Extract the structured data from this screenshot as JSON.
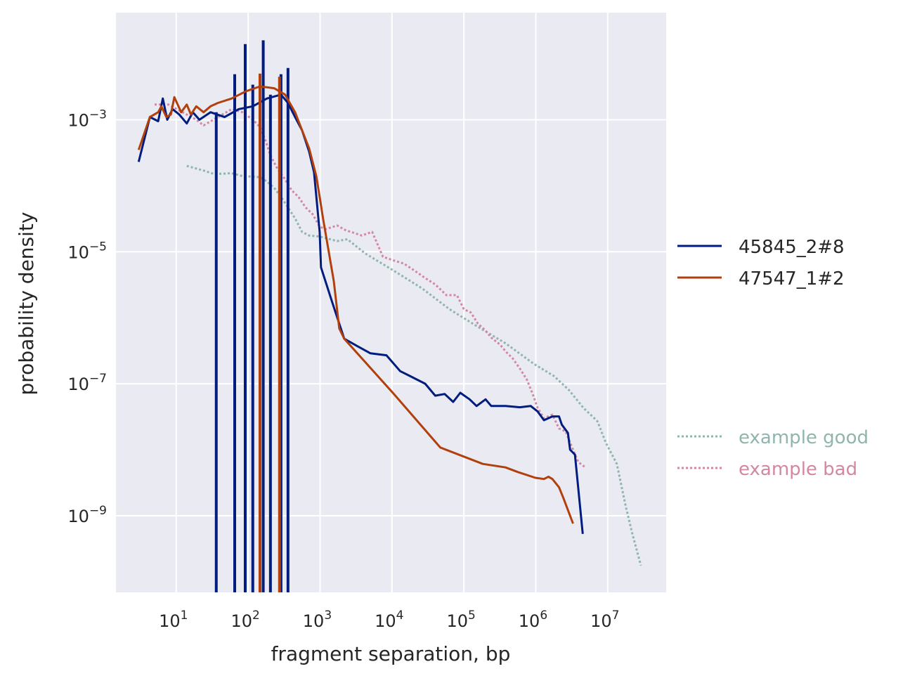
{
  "chart_data": {
    "type": "line",
    "title": "",
    "xlabel": "fragment separation, bp",
    "ylabel": "probability density",
    "xscale": "log",
    "yscale": "log",
    "xlim": [
      1.45,
      65000000.0
    ],
    "ylim": [
      6.9e-11,
      0.042
    ],
    "grid": true,
    "legend_placement": "center-right outside",
    "xticks": [
      {
        "value": 10.0,
        "base": "10",
        "exp": "1"
      },
      {
        "value": 100.0,
        "base": "10",
        "exp": "2"
      },
      {
        "value": 1000.0,
        "base": "10",
        "exp": "3"
      },
      {
        "value": 10000.0,
        "base": "10",
        "exp": "4"
      },
      {
        "value": 100000.0,
        "base": "10",
        "exp": "5"
      },
      {
        "value": 1000000.0,
        "base": "10",
        "exp": "6"
      },
      {
        "value": 10000000.0,
        "base": "10",
        "exp": "7"
      }
    ],
    "yticks": [
      {
        "value": 0.001,
        "base": "10",
        "exp": "−3"
      },
      {
        "value": 1e-05,
        "base": "10",
        "exp": "−5"
      },
      {
        "value": 1e-07,
        "base": "10",
        "exp": "−7"
      },
      {
        "value": 1e-09,
        "base": "10",
        "exp": "−9"
      }
    ],
    "series": [
      {
        "name": "45845_2#8",
        "color": "#001c7f",
        "style": "solid",
        "x": [
          3.0,
          4.3,
          5.6,
          6.5,
          7.5,
          8.9,
          11,
          14,
          17,
          21,
          30,
          47,
          74,
          116,
          182,
          286,
          358,
          449,
          562,
          705,
          825,
          987,
          1030,
          1480,
          2170,
          3040,
          4990,
          8370,
          13000.0,
          18000.0,
          29000.0,
          40000.0,
          54000.0,
          71000.0,
          89000.0,
          120000.0,
          150000.0,
          200000.0,
          240000.0,
          380000.0,
          600000.0,
          850000.0,
          1060000.0,
          1300000.0,
          1700000.0,
          2100000.0,
          2300000.0,
          2800000.0,
          3000000.0,
          3500000.0,
          4500000.0
        ],
        "y": [
          0.00023,
          0.0011,
          0.00095,
          0.0021,
          0.001,
          0.00145,
          0.0012,
          0.00088,
          0.0013,
          0.001,
          0.0013,
          0.0011,
          0.00145,
          0.0016,
          0.0021,
          0.0024,
          0.0018,
          0.0011,
          0.00069,
          0.00033,
          0.00016,
          2e-05,
          5.8e-06,
          1.7e-06,
          4.8e-07,
          3.9e-07,
          2.9e-07,
          2.7e-07,
          1.55e-07,
          1.3e-07,
          1e-07,
          6.6e-08,
          7e-08,
          5.3e-08,
          7.3e-08,
          5.8e-08,
          4.6e-08,
          5.8e-08,
          4.6e-08,
          4.6e-08,
          4.4e-08,
          4.6e-08,
          3.8e-08,
          2.8e-08,
          3.2e-08,
          3.2e-08,
          2.4e-08,
          1.8e-08,
          1e-08,
          8.4e-09,
          5.3e-10
        ],
        "spikes": [
          {
            "x": 36,
            "top": 0.0013
          },
          {
            "x": 65,
            "top": 0.0049
          },
          {
            "x": 91,
            "top": 0.014
          },
          {
            "x": 116,
            "top": 0.0034
          },
          {
            "x": 162,
            "top": 0.016
          },
          {
            "x": 204,
            "top": 0.0024
          },
          {
            "x": 286,
            "top": 0.0049
          },
          {
            "x": 358,
            "top": 0.0061
          }
        ]
      },
      {
        "name": "47547_1#2",
        "color": "#b1400d",
        "style": "solid",
        "x": [
          3.0,
          4.3,
          5.6,
          6.2,
          7.3,
          8.4,
          9.4,
          11.7,
          14,
          16,
          19,
          24,
          30,
          38,
          59,
          93,
          146,
          230,
          326,
          449,
          562,
          705,
          885,
          987,
          1100,
          1550,
          1850,
          2170,
          10500.0,
          47000.0,
          183000.0,
          380000.0,
          560000.0,
          990000.0,
          1300000.0,
          1500000.0,
          1700000.0,
          2100000.0,
          2400000.0,
          3300000.0
        ],
        "y": [
          0.00035,
          0.0011,
          0.0013,
          0.0016,
          0.0011,
          0.0012,
          0.0022,
          0.0013,
          0.0017,
          0.0012,
          0.0016,
          0.0013,
          0.0016,
          0.0018,
          0.0021,
          0.0027,
          0.0032,
          0.003,
          0.0024,
          0.0013,
          0.00069,
          0.00037,
          0.00014,
          6.8e-05,
          3.2e-05,
          3.6e-06,
          6.9e-07,
          4.8e-07,
          7.1e-08,
          1.08e-08,
          6.1e-09,
          5.4e-09,
          4.6e-09,
          3.75e-09,
          3.6e-09,
          3.9e-09,
          3.6e-09,
          2.7e-09,
          1.9e-09,
          7.6e-10
        ],
        "spikes": [
          {
            "x": 146,
            "top": 0.005
          },
          {
            "x": 273,
            "top": 0.0045
          }
        ]
      },
      {
        "name": "example good",
        "color": "#8fb5ae",
        "style": "dotted",
        "x": [
          14,
          24,
          34,
          59,
          83,
          146,
          182,
          230,
          286,
          358,
          449,
          562,
          705,
          987,
          1730,
          2400,
          4200,
          10500.0,
          26000.0,
          63000.0,
          156000.0,
          380000.0,
          940000.0,
          1800000.0,
          2900000.0,
          4600000.0,
          7200000.0,
          9400000.0,
          13400000.0,
          17800000.0,
          22000000.0,
          29000000.0
        ],
        "y": [
          0.0002,
          0.00017,
          0.00015,
          0.000155,
          0.00014,
          0.000135,
          0.000116,
          9.3e-05,
          6.8e-05,
          4.7e-05,
          3.2e-05,
          2e-05,
          1.76e-05,
          1.7e-05,
          1.45e-05,
          1.55e-05,
          9.5e-06,
          5.2e-06,
          2.8e-06,
          1.35e-06,
          7.3e-07,
          4.1e-07,
          2e-07,
          1.3e-07,
          8e-08,
          4.3e-08,
          2.7e-08,
          1.28e-08,
          6.1e-09,
          1.4e-09,
          5.3e-10,
          1.76e-10
        ]
      },
      {
        "name": "example bad",
        "color": "#d487a3",
        "style": "dotted",
        "x": [
          5.0,
          7.8,
          12.2,
          19,
          24,
          38,
          59,
          83,
          116,
          146,
          175,
          204,
          256,
          326,
          400,
          500,
          630,
          790,
          987,
          1200,
          1730,
          2300,
          2700,
          3800,
          5300,
          7500,
          10500.0,
          14700.0,
          20500.0,
          29000.0,
          40000.0,
          57000.0,
          80000.0,
          100000.0,
          125000.0,
          156000.0,
          200000.0,
          240000.0,
          320000.0,
          380000.0,
          480000.0,
          600000.0,
          750000.0,
          900000.0,
          1060000.0,
          1300000.0,
          1700000.0,
          2100000.0,
          2600000.0,
          3300000.0,
          3900000.0,
          4900000.0
        ],
        "y": [
          0.0017,
          0.0017,
          0.0013,
          0.001,
          0.00082,
          0.0011,
          0.00145,
          0.0013,
          0.001,
          0.00078,
          0.00048,
          0.00029,
          0.00018,
          0.000125,
          8.6e-05,
          6.8e-05,
          4.7e-05,
          3.7e-05,
          2.4e-05,
          2.2e-05,
          2.5e-05,
          2.1e-05,
          2e-05,
          1.76e-05,
          2e-05,
          8.4e-06,
          7.4e-06,
          6.6e-06,
          5.2e-06,
          4e-06,
          3.2e-06,
          2.2e-06,
          2.2e-06,
          1.35e-06,
          1.2e-06,
          8.2e-07,
          6.4e-07,
          5e-07,
          3.9e-07,
          3.1e-07,
          2.4e-07,
          1.7e-07,
          1.16e-07,
          7.1e-08,
          4.3e-08,
          3e-08,
          3.4e-08,
          2.1e-08,
          1.9e-08,
          1e-08,
          6.5e-09,
          5.4e-09
        ]
      }
    ]
  }
}
